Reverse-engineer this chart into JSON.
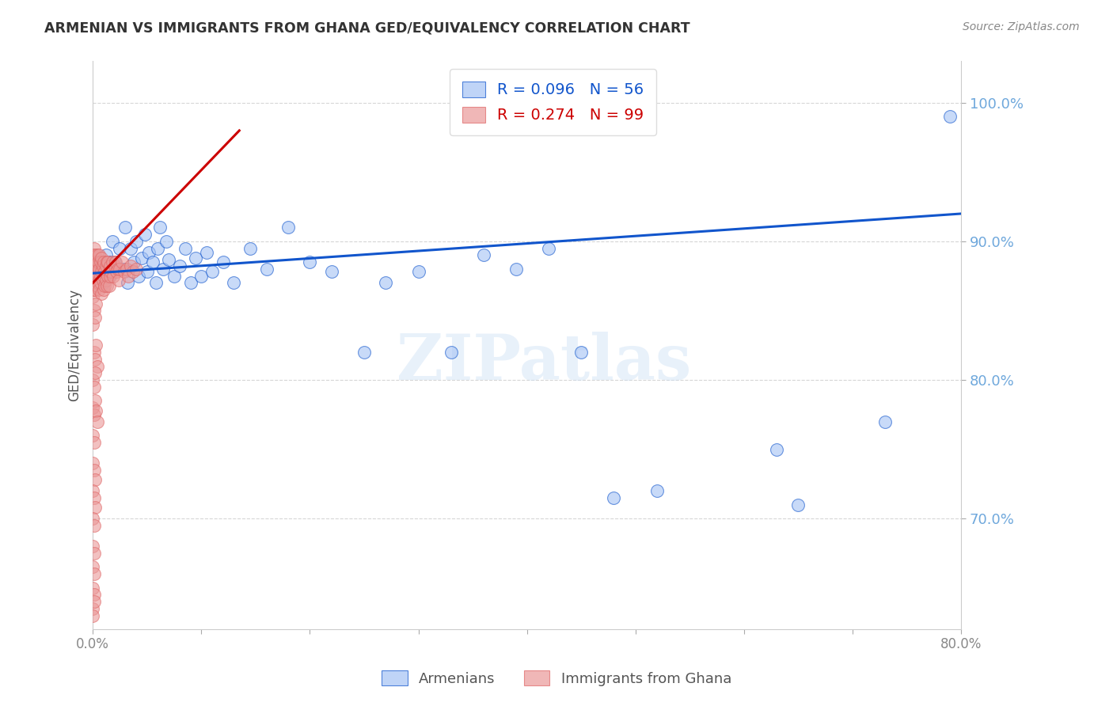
{
  "title": "ARMENIAN VS IMMIGRANTS FROM GHANA GED/EQUIVALENCY CORRELATION CHART",
  "source": "Source: ZipAtlas.com",
  "ylabel": "GED/Equivalency",
  "legend_armenian": "Armenians",
  "legend_ghana": "Immigrants from Ghana",
  "R_armenian": 0.096,
  "N_armenian": 56,
  "R_ghana": 0.274,
  "N_ghana": 99,
  "color_armenian": "#a4c2f4",
  "color_ghana": "#ea9999",
  "color_trend_armenian": "#1155cc",
  "color_trend_ghana": "#cc0000",
  "color_ytick": "#6fa8dc",
  "color_xtick": "#888888",
  "color_grid": "#cccccc",
  "watermark": "ZIPatlas",
  "xlim": [
    0.0,
    0.8
  ],
  "ylim": [
    0.62,
    1.03
  ],
  "ytick_vals": [
    0.7,
    0.8,
    0.9,
    1.0
  ],
  "ytick_labels": [
    "70.0%",
    "80.0%",
    "90.0%",
    "100.0%"
  ],
  "xtick_vals": [
    0.0,
    0.1,
    0.2,
    0.3,
    0.4,
    0.5,
    0.6,
    0.7,
    0.8
  ],
  "xtick_labels": [
    "0.0%",
    "",
    "",
    "",
    "",
    "",
    "",
    "",
    "80.0%"
  ],
  "arm_trend_x": [
    0.0,
    0.8
  ],
  "arm_trend_y": [
    0.877,
    0.92
  ],
  "ghana_trend_x": [
    0.0,
    0.135
  ],
  "ghana_trend_y": [
    0.87,
    0.98
  ],
  "armenian_x": [
    0.005,
    0.008,
    0.01,
    0.012,
    0.015,
    0.015,
    0.018,
    0.02,
    0.025,
    0.028,
    0.03,
    0.032,
    0.035,
    0.038,
    0.04,
    0.042,
    0.045,
    0.048,
    0.05,
    0.052,
    0.055,
    0.058,
    0.06,
    0.062,
    0.065,
    0.068,
    0.07,
    0.075,
    0.08,
    0.085,
    0.09,
    0.095,
    0.1,
    0.105,
    0.11,
    0.12,
    0.13,
    0.145,
    0.16,
    0.18,
    0.2,
    0.22,
    0.25,
    0.27,
    0.3,
    0.33,
    0.36,
    0.39,
    0.42,
    0.45,
    0.48,
    0.52,
    0.63,
    0.65,
    0.73,
    0.79
  ],
  "armenian_y": [
    0.875,
    0.88,
    0.87,
    0.89,
    0.885,
    0.875,
    0.9,
    0.885,
    0.895,
    0.88,
    0.91,
    0.87,
    0.895,
    0.885,
    0.9,
    0.875,
    0.888,
    0.905,
    0.878,
    0.892,
    0.885,
    0.87,
    0.895,
    0.91,
    0.88,
    0.9,
    0.887,
    0.875,
    0.882,
    0.895,
    0.87,
    0.888,
    0.875,
    0.892,
    0.878,
    0.885,
    0.87,
    0.895,
    0.88,
    0.91,
    0.885,
    0.878,
    0.82,
    0.87,
    0.878,
    0.82,
    0.89,
    0.88,
    0.895,
    0.82,
    0.715,
    0.72,
    0.75,
    0.71,
    0.77,
    0.99
  ],
  "ghana_x": [
    0.0,
    0.0,
    0.0,
    0.0,
    0.0,
    0.001,
    0.001,
    0.001,
    0.001,
    0.001,
    0.002,
    0.002,
    0.002,
    0.003,
    0.003,
    0.003,
    0.004,
    0.004,
    0.004,
    0.005,
    0.005,
    0.005,
    0.006,
    0.006,
    0.006,
    0.007,
    0.007,
    0.007,
    0.008,
    0.008,
    0.008,
    0.009,
    0.009,
    0.01,
    0.01,
    0.01,
    0.011,
    0.011,
    0.012,
    0.012,
    0.013,
    0.013,
    0.014,
    0.014,
    0.015,
    0.015,
    0.016,
    0.016,
    0.017,
    0.018,
    0.019,
    0.02,
    0.021,
    0.022,
    0.023,
    0.024,
    0.025,
    0.027,
    0.029,
    0.031,
    0.033,
    0.035,
    0.037,
    0.04,
    0.0,
    0.001,
    0.002,
    0.003,
    0.001,
    0.002,
    0.003,
    0.004,
    0.0,
    0.001,
    0.002,
    0.0,
    0.001,
    0.002,
    0.003,
    0.004,
    0.0,
    0.001,
    0.0,
    0.001,
    0.002,
    0.0,
    0.001,
    0.002,
    0.0,
    0.001,
    0.0,
    0.001,
    0.0,
    0.001,
    0.0,
    0.001,
    0.0,
    0.001,
    0.0
  ],
  "ghana_y": [
    0.87,
    0.88,
    0.86,
    0.89,
    0.875,
    0.885,
    0.87,
    0.895,
    0.865,
    0.88,
    0.875,
    0.89,
    0.865,
    0.885,
    0.87,
    0.878,
    0.882,
    0.868,
    0.89,
    0.875,
    0.885,
    0.87,
    0.88,
    0.865,
    0.89,
    0.875,
    0.885,
    0.87,
    0.878,
    0.862,
    0.888,
    0.872,
    0.882,
    0.875,
    0.885,
    0.865,
    0.878,
    0.868,
    0.882,
    0.872,
    0.885,
    0.868,
    0.875,
    0.885,
    0.878,
    0.868,
    0.882,
    0.875,
    0.878,
    0.885,
    0.875,
    0.882,
    0.885,
    0.878,
    0.88,
    0.872,
    0.88,
    0.885,
    0.878,
    0.88,
    0.875,
    0.882,
    0.878,
    0.88,
    0.84,
    0.85,
    0.845,
    0.855,
    0.82,
    0.815,
    0.825,
    0.81,
    0.8,
    0.795,
    0.805,
    0.78,
    0.775,
    0.785,
    0.778,
    0.77,
    0.76,
    0.755,
    0.74,
    0.735,
    0.728,
    0.72,
    0.715,
    0.708,
    0.7,
    0.695,
    0.68,
    0.675,
    0.665,
    0.66,
    0.65,
    0.645,
    0.635,
    0.64,
    0.63
  ]
}
